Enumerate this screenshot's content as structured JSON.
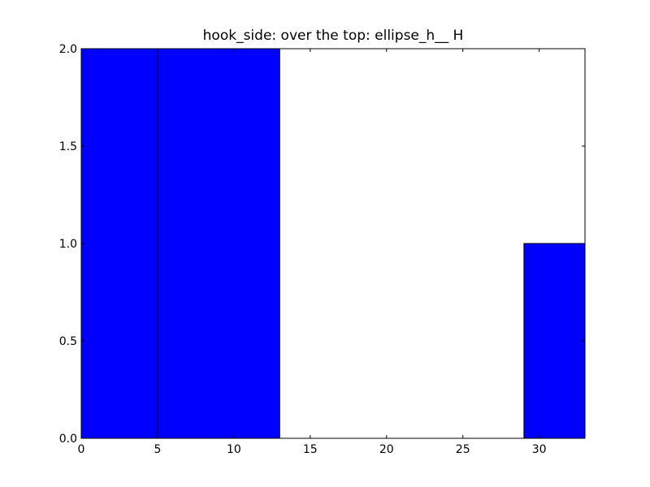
{
  "chart_data": {
    "type": "bar",
    "title": "hook_side: over the top: ellipse_h__ H",
    "xlabel": "",
    "ylabel": "",
    "xlim": [
      0,
      33
    ],
    "ylim": [
      0,
      2.0
    ],
    "bars": [
      {
        "x0": 0,
        "x1": 5,
        "value": 2
      },
      {
        "x0": 5,
        "x1": 13,
        "value": 2
      },
      {
        "x0": 13,
        "x1": 21,
        "value": 0
      },
      {
        "x0": 21,
        "x1": 29,
        "value": 0
      },
      {
        "x0": 29,
        "x1": 33,
        "value": 1
      }
    ],
    "x_ticks": [
      {
        "value": 0,
        "label": "0"
      },
      {
        "value": 5,
        "label": "5"
      },
      {
        "value": 10,
        "label": "10"
      },
      {
        "value": 15,
        "label": "15"
      },
      {
        "value": 20,
        "label": "20"
      },
      {
        "value": 25,
        "label": "25"
      },
      {
        "value": 30,
        "label": "30"
      }
    ],
    "y_ticks": [
      {
        "value": 0,
        "label": "0.0"
      },
      {
        "value": 0.5,
        "label": "0.5"
      },
      {
        "value": 1,
        "label": "1.0"
      },
      {
        "value": 1.5,
        "label": "1.5"
      },
      {
        "value": 2,
        "label": "2.0"
      }
    ],
    "grid": false,
    "legend": "none",
    "bar_color": "#0000ff",
    "edge_color": "#000000"
  }
}
